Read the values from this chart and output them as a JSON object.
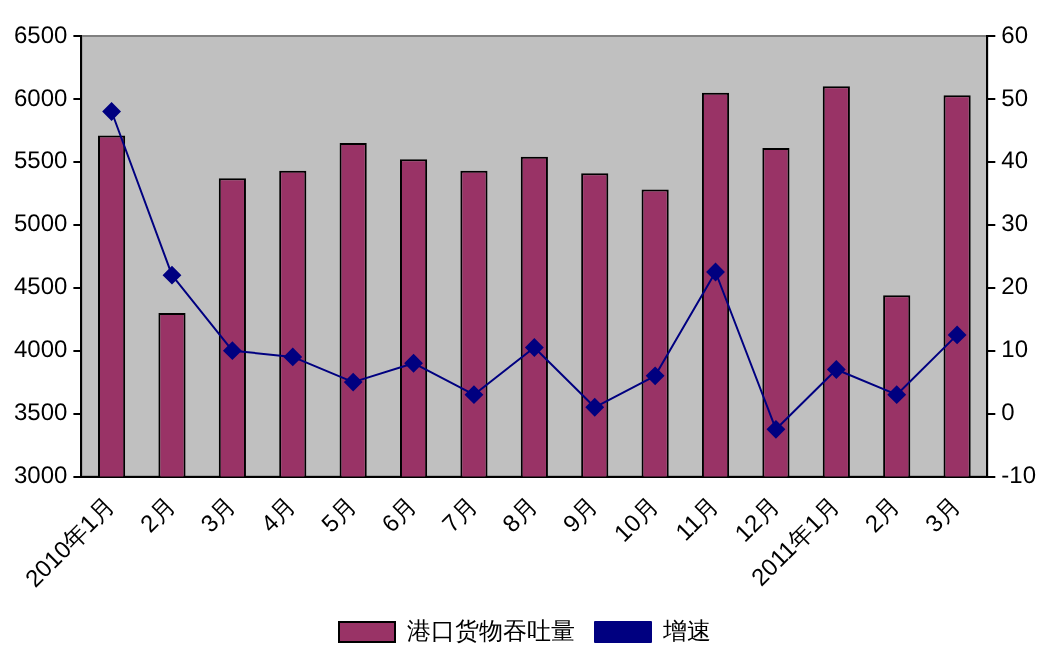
{
  "chart_data": {
    "type": "bar",
    "categories": [
      "2010年1月",
      "2月",
      "3月",
      "4月",
      "5月",
      "6月",
      "7月",
      "8月",
      "9月",
      "10月",
      "11月",
      "12月",
      "2011年1月",
      "2月",
      "3月"
    ],
    "series": [
      {
        "name": "港口货物吞吐量",
        "color": "#993366",
        "values": [
          5710,
          4300,
          5370,
          5430,
          5650,
          5520,
          5430,
          5540,
          5410,
          5280,
          6050,
          5610,
          6100,
          4440,
          6030
        ]
      },
      {
        "name": "增速",
        "type": "line",
        "axis": "y2",
        "color": "#000080",
        "marker": "diamond",
        "values": [
          48,
          22,
          10,
          9,
          5,
          8,
          3,
          10.5,
          1,
          6,
          22.5,
          -2.5,
          7,
          3,
          12.5
        ]
      }
    ],
    "ylim": [
      3000,
      6500
    ],
    "yticks": [
      3000,
      3500,
      4000,
      4500,
      5000,
      5500,
      6000,
      6500
    ],
    "y2lim": [
      -10,
      60
    ],
    "y2ticks": [
      -10,
      0,
      10,
      20,
      30,
      40,
      50,
      60
    ],
    "grid": false,
    "legend": "bottom"
  }
}
